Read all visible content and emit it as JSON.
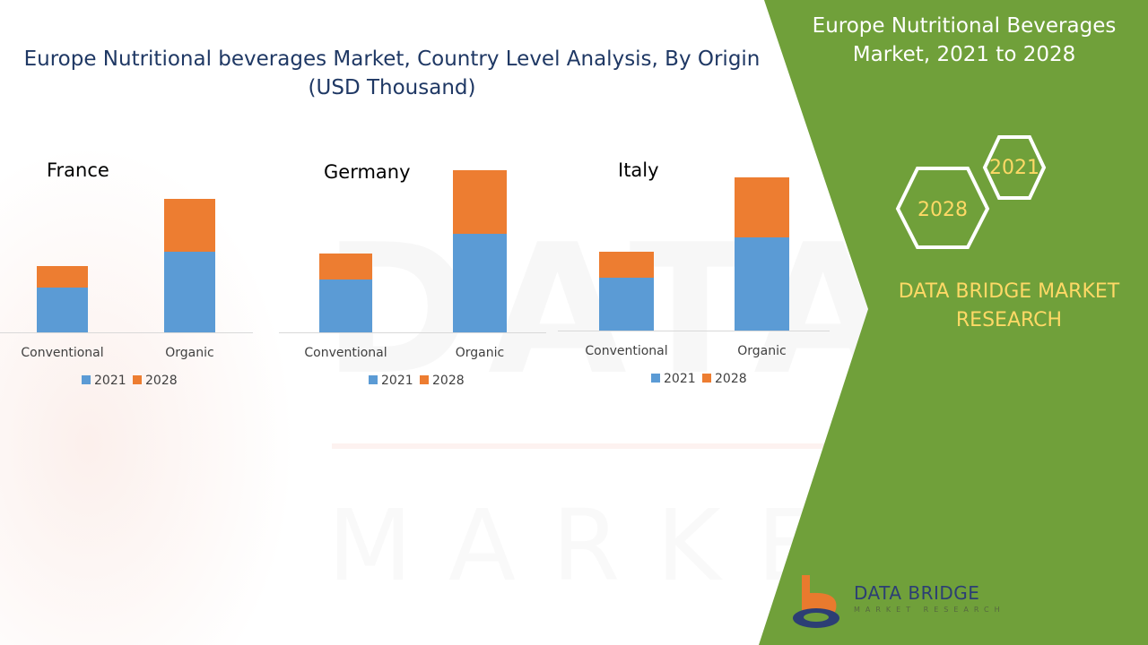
{
  "title": {
    "line1": "Europe Nutritional beverages Market, Country Level Analysis, By Origin",
    "line2": "(USD Thousand)"
  },
  "side_panel": {
    "title_line1": "Europe Nutritional Beverages",
    "title_line2": "Market, 2021 to 2028",
    "hex_year_1": "2021",
    "hex_year_2": "2028",
    "brand_line1": "DATA BRIDGE MARKET",
    "brand_line2": "RESEARCH",
    "logo_name": "DATA BRIDGE",
    "logo_sub": "MARKET RESEARCH",
    "watermark": "DATA BRIDGE",
    "watermark_sub": "MARKET RESEARCH"
  },
  "colors": {
    "series_2021": "#5b9bd5",
    "series_2028": "#ed7d31",
    "panel_green": "#70a03a",
    "brand_yellow": "#ffd966",
    "title_navy": "#1f3864"
  },
  "chart_data": [
    {
      "type": "bar",
      "stacked": true,
      "title": "France",
      "categories": [
        "Conventional",
        "Organic"
      ],
      "series": [
        {
          "name": "2021",
          "values": [
            50,
            90
          ]
        },
        {
          "name": "2028",
          "values": [
            24,
            59
          ]
        }
      ],
      "ylim": [
        0,
        200
      ],
      "grid": false,
      "legend": "bottom"
    },
    {
      "type": "bar",
      "stacked": true,
      "title": "Germany",
      "categories": [
        "Conventional",
        "Organic"
      ],
      "series": [
        {
          "name": "2021",
          "values": [
            59,
            110
          ]
        },
        {
          "name": "2028",
          "values": [
            29,
            71
          ]
        }
      ],
      "ylim": [
        0,
        200
      ],
      "grid": false,
      "legend": "bottom"
    },
    {
      "type": "bar",
      "stacked": true,
      "title": "Italy",
      "categories": [
        "Conventional",
        "Organic"
      ],
      "series": [
        {
          "name": "2021",
          "values": [
            59,
            104
          ]
        },
        {
          "name": "2028",
          "values": [
            29,
            67
          ]
        }
      ],
      "ylim": [
        0,
        200
      ],
      "grid": false,
      "legend": "bottom"
    }
  ]
}
